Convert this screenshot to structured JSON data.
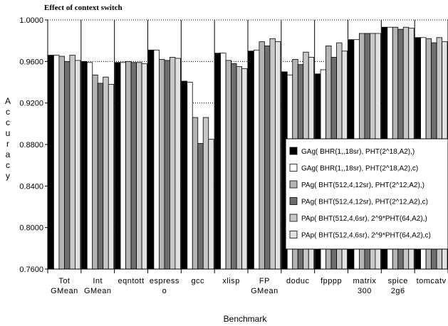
{
  "chart_data": {
    "type": "bar",
    "title": "Effect of context switch",
    "xlabel": "Benchmark",
    "ylabel": "Accuracy",
    "ylim": [
      0.76,
      1.0
    ],
    "yticks": [
      "0.7600",
      "0.8000",
      "0.8400",
      "0.8800",
      "0.9200",
      "0.9600",
      "1.0000"
    ],
    "grid": true,
    "legend_position": "right",
    "categories": [
      [
        "Tot",
        "GMean"
      ],
      [
        "Int",
        "GMean"
      ],
      [
        "eqntott"
      ],
      [
        "espress",
        "o"
      ],
      [
        "gcc"
      ],
      [
        "xlisp"
      ],
      [
        "FP",
        "GMean"
      ],
      [
        "doduc"
      ],
      [
        "fpppp"
      ],
      [
        "matrix",
        "300"
      ],
      [
        "spice",
        "2g6"
      ],
      [
        "tomcatv"
      ]
    ],
    "series": [
      {
        "name": "GAg( BHR(1,,18sr), PHT(2^18,A2),)",
        "color": "#000000",
        "values": [
          0.966,
          0.96,
          0.959,
          0.971,
          0.941,
          0.968,
          0.97,
          0.95,
          0.948,
          0.981,
          0.993,
          0.983
        ]
      },
      {
        "name": "GAg( BHR(1,,18sr), PHT(2^18,A2),c)",
        "color": "#ffffff",
        "values": [
          0.966,
          0.959,
          0.959,
          0.971,
          0.94,
          0.968,
          0.971,
          0.947,
          0.952,
          0.981,
          0.993,
          0.983
        ]
      },
      {
        "name": "PAg( BHT(512,4,12sr), PHT(2^12,A2),)",
        "color": "#b4b4b4",
        "values": [
          0.965,
          0.947,
          0.96,
          0.962,
          0.906,
          0.961,
          0.979,
          0.962,
          0.975,
          0.987,
          0.993,
          0.982
        ]
      },
      {
        "name": "PAg( BHT(512,4,12sr), PHT(2^12,A2),c)",
        "color": "#6e6e6e",
        "values": [
          0.96,
          0.939,
          0.959,
          0.961,
          0.881,
          0.958,
          0.975,
          0.957,
          0.964,
          0.987,
          0.991,
          0.978
        ]
      },
      {
        "name": "PAp( BHT(512,4,6sr), 2^9*PHT(64,A2),)",
        "color": "#c8c8c8",
        "values": [
          0.966,
          0.945,
          0.959,
          0.964,
          0.906,
          0.955,
          0.982,
          0.969,
          0.978,
          0.987,
          0.993,
          0.983
        ]
      },
      {
        "name": "PAp( BHT(512,4,6sr), 2^9*PHT(64,A2),c)",
        "color": "#e2e2e2",
        "values": [
          0.961,
          0.938,
          0.958,
          0.963,
          0.885,
          0.953,
          0.979,
          0.964,
          0.97,
          0.987,
          0.992,
          0.979
        ]
      }
    ]
  }
}
